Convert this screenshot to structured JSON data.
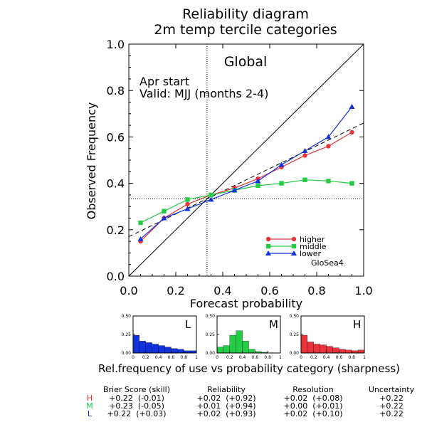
{
  "title_line1": "Reliability diagram",
  "title_line2": "2m temp tercile categories",
  "region": "Global",
  "start_label": "Apr start",
  "valid_label": "Valid: MJJ (months 2-4)",
  "model_label": "GloSea4",
  "sharpness_label": "Rel.frequency of use vs probability category (sharpness)",
  "colors": {
    "higher": "#e8333b",
    "middle": "#22cc44",
    "lower": "#1133dd"
  },
  "chart_data": {
    "type": "line",
    "xlabel": "Forecast probability",
    "ylabel": "Observed Frequency",
    "xlim": [
      0,
      1
    ],
    "ylim": [
      0,
      1
    ],
    "x_ticks": [
      "0.0",
      "0.2",
      "0.4",
      "0.6",
      "0.8",
      "1.0"
    ],
    "y_ticks": [
      "0.0",
      "0.2",
      "0.4",
      "0.6",
      "0.8",
      "1.0"
    ],
    "climatology": 0.333,
    "x": [
      0.05,
      0.15,
      0.25,
      0.35,
      0.45,
      0.55,
      0.65,
      0.75,
      0.85,
      0.95
    ],
    "series": [
      {
        "name": "higher",
        "key": "higher",
        "marker": "circle",
        "values": [
          0.15,
          0.25,
          0.31,
          0.35,
          0.38,
          0.42,
          0.47,
          0.52,
          0.56,
          0.62
        ]
      },
      {
        "name": "middle",
        "key": "middle",
        "marker": "square",
        "values": [
          0.23,
          0.28,
          0.33,
          0.35,
          0.37,
          0.39,
          0.4,
          0.415,
          0.41,
          0.4
        ]
      },
      {
        "name": "lower",
        "key": "lower",
        "marker": "triangle",
        "values": [
          0.16,
          0.25,
          0.29,
          0.33,
          0.37,
          0.41,
          0.48,
          0.54,
          0.6,
          0.73
        ]
      }
    ],
    "fit_line": {
      "x": [
        0.0,
        1.0
      ],
      "y": [
        0.17,
        0.66
      ]
    },
    "legend": [
      "higher",
      "middle",
      "lower"
    ],
    "legend_position": "bottom-right"
  },
  "sharpness": {
    "y_ticks": [
      "0.50",
      "0.25",
      "0.00"
    ],
    "x_ticks": [
      "0",
      "0.2",
      "0.4",
      "0.6",
      "0.8",
      "1"
    ],
    "panels": [
      {
        "label": "L",
        "key": "lower",
        "values": [
          0.24,
          0.16,
          0.14,
          0.12,
          0.1,
          0.08,
          0.06,
          0.05,
          0.03,
          0.03
        ]
      },
      {
        "label": "M",
        "key": "middle",
        "values": [
          0.08,
          0.1,
          0.24,
          0.3,
          0.16,
          0.05,
          0.02,
          0.01,
          0.0,
          0.0
        ]
      },
      {
        "label": "H",
        "key": "higher",
        "values": [
          0.24,
          0.15,
          0.12,
          0.11,
          0.09,
          0.07,
          0.05,
          0.04,
          0.03,
          0.04
        ]
      }
    ]
  },
  "scores": {
    "headers": [
      "Brier Score (skill)",
      "Reliability",
      "Resolution",
      "Uncertainty"
    ],
    "rows": [
      {
        "label": "H",
        "key": "higher",
        "values": [
          "+0.22  (-0.01)",
          "+0.02  (+0.92)",
          "+0.02  (+0.08)",
          "+0.22"
        ]
      },
      {
        "label": "M",
        "key": "middle",
        "values": [
          "+0.23  (-0.05)",
          "+0.01  (+0.94)",
          "+0.00  (+0.01)",
          "+0.22"
        ]
      },
      {
        "label": "L",
        "key": "lower",
        "values": [
          "+0.22  (+0.03)",
          "+0.02  (+0.93)",
          "+0.02  (+0.10)",
          "+0.22"
        ]
      }
    ]
  }
}
